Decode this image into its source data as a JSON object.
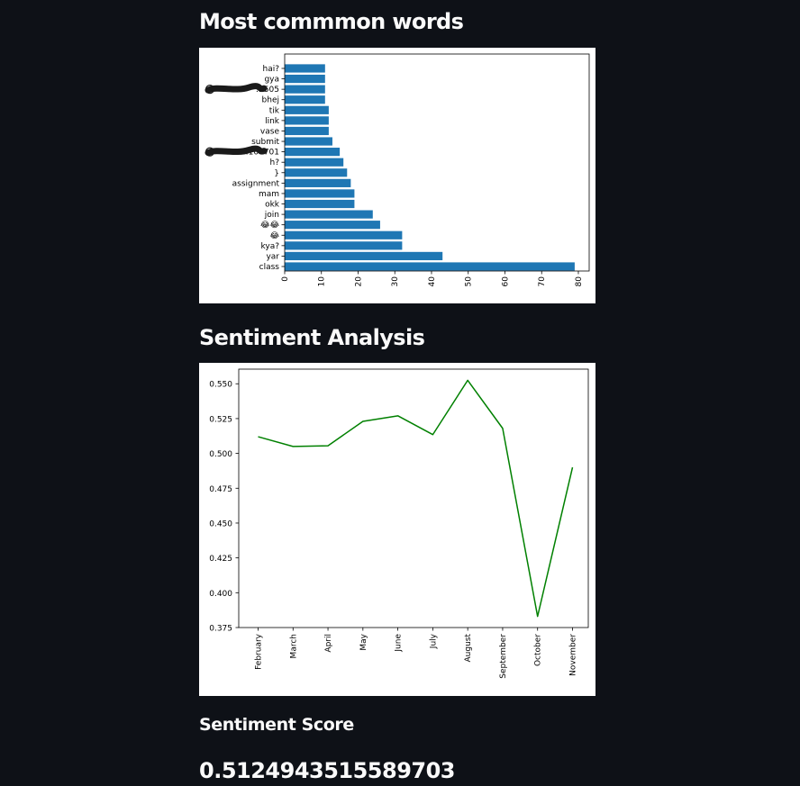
{
  "sections": {
    "common_words_title": "Most commmon words",
    "sentiment_title": "Sentiment Analysis"
  },
  "metric": {
    "label": "Sentiment Score",
    "value": "0.5124943515589703"
  },
  "colors": {
    "background": "#0e1117",
    "text": "#fafafa",
    "bar": "#1f77b4",
    "line": "#008000",
    "redaction": "#1a1a1a"
  },
  "chart_data": [
    {
      "type": "bar",
      "orientation": "horizontal",
      "categories": [
        "class",
        "yar",
        "kya?",
        "😂",
        "😂😂",
        "join",
        "okk",
        "mam",
        "assignment",
        "}",
        "h?",
        "…107701",
        "submit",
        "vase",
        "link",
        "tik",
        "bhej",
        "…505",
        "gya",
        "hai?"
      ],
      "values": [
        79,
        43,
        32,
        32,
        26,
        24,
        19,
        19,
        18,
        17,
        16,
        15,
        13,
        12,
        12,
        12,
        11,
        11,
        11,
        11
      ],
      "redacted_categories": [
        "…107701",
        "…505"
      ],
      "xticks": [
        "0",
        "10",
        "20",
        "30",
        "40",
        "50",
        "60",
        "70",
        "80"
      ],
      "xlim": [
        0,
        82.95
      ],
      "title": "",
      "xlabel": "",
      "ylabel": "",
      "grid": false
    },
    {
      "type": "line",
      "x": [
        "February",
        "March",
        "April",
        "May",
        "June",
        "July",
        "August",
        "September",
        "October",
        "November"
      ],
      "y": [
        0.512,
        0.505,
        0.5055,
        0.523,
        0.527,
        0.5135,
        0.5525,
        0.518,
        0.383,
        0.49
      ],
      "yticks": [
        "0.375",
        "0.400",
        "0.425",
        "0.450",
        "0.475",
        "0.500",
        "0.525",
        "0.550"
      ],
      "ylim": [
        0.375,
        0.5605
      ],
      "line_color": "#008000",
      "title": "",
      "xlabel": "",
      "ylabel": "",
      "grid": false
    }
  ]
}
